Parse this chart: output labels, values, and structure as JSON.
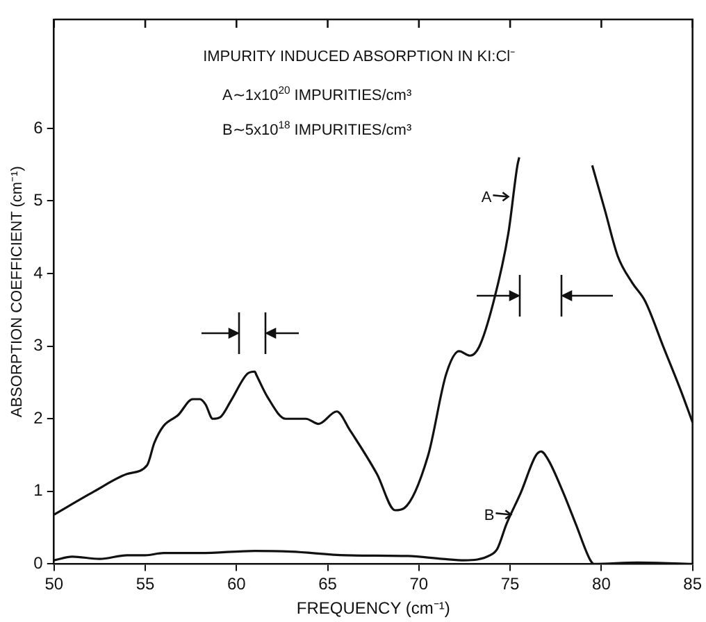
{
  "chart_data": {
    "type": "line",
    "title": "IMPURITY INDUCED ABSORPTION IN KI:Cl⁻",
    "xlabel": "FREQUENCY (cm⁻¹)",
    "ylabel": "ABSORPTION COEFFICIENT (cm⁻¹)",
    "annotations": [
      "A∼1x10$^{20}$ IMPURITIES/cm³",
      "B∼5x10$^{18}$ IMPURITIES/cm³",
      {
        "text": "A",
        "x": 75.05,
        "y": 5.06
      },
      {
        "text": "B",
        "x": 75.2,
        "y": 0.68
      }
    ],
    "xlim": [
      50,
      85
    ],
    "ylim": [
      0,
      7.5
    ],
    "xticks": [
      50,
      55,
      60,
      65,
      70,
      75,
      80,
      85
    ],
    "yticks": [
      0,
      1,
      2,
      3,
      4,
      5,
      6
    ],
    "grid": false,
    "legend": false,
    "marker": "none",
    "line_style": "solid",
    "series": [
      {
        "color": "#111111",
        "x": [
          50,
          52.2,
          54,
          55.1,
          55.5,
          56,
          56.8,
          57.6,
          58,
          58.3,
          58.7,
          59.1,
          59.7,
          60.6,
          61,
          61.1,
          61.7,
          62.7,
          63.8,
          64.5,
          65.5,
          66.2,
          67.7,
          68.7,
          69.2,
          70.5,
          71.5,
          72.2,
          72.8,
          73.3,
          74.1,
          74.9,
          75.4,
          75.5,
          79.4,
          79.5,
          80.2,
          80.9,
          81.7,
          82.4,
          83.4,
          84.4,
          85
        ],
        "values": [
          0.68,
          1.0,
          1.24,
          1.36,
          1.67,
          1.9,
          2.05,
          2.27,
          2.27,
          2.2,
          2.0,
          2.02,
          2.25,
          2.62,
          2.65,
          2.6,
          2.3,
          2.0,
          2.0,
          1.93,
          2.1,
          1.85,
          1.24,
          0.74,
          0.77,
          1.49,
          2.62,
          2.93,
          2.87,
          2.99,
          3.62,
          4.55,
          5.49,
          5.6,
          null,
          5.49,
          4.87,
          4.24,
          3.87,
          3.62,
          2.99,
          2.36,
          1.95
        ]
      },
      {
        "color": "#111111",
        "x": [
          50,
          51,
          52.5,
          54,
          55,
          56,
          58,
          61,
          63,
          66,
          69.4,
          71.3,
          72.5,
          73.9,
          74.3,
          74.8,
          75.6,
          76.4,
          76.7,
          77.1,
          77.9,
          78.6,
          79.4,
          79.6,
          82,
          85
        ],
        "values": [
          0.05,
          0.1,
          0.07,
          0.12,
          0.12,
          0.15,
          0.15,
          0.18,
          0.17,
          0.12,
          0.11,
          0.07,
          0.05,
          0.12,
          0.21,
          0.55,
          0.99,
          1.49,
          1.55,
          1.43,
          0.99,
          0.55,
          0.05,
          0,
          0.02,
          0
        ]
      }
    ]
  }
}
